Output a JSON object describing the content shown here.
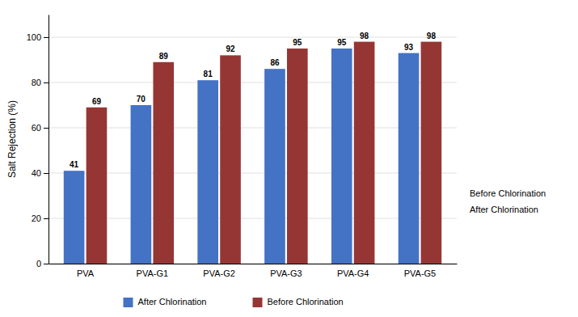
{
  "chart_data": {
    "type": "bar",
    "ylabel": "Salt Rejection (%)",
    "categories": [
      "PVA",
      "PVA-G1",
      "PVA-G2",
      "PVA-G3",
      "PVA-G4",
      "PVA-G5"
    ],
    "series": [
      {
        "name": "After Chlorination",
        "color": "#4472C4",
        "values": [
          41,
          70,
          81,
          86,
          95,
          93
        ]
      },
      {
        "name": "Before Chlorination",
        "color": "#963634",
        "values": [
          69,
          89,
          92,
          95,
          98,
          98
        ]
      }
    ],
    "ylim": [
      0,
      110
    ],
    "yticks": [
      0,
      20,
      40,
      60,
      80,
      100
    ],
    "grid": true,
    "legend": "bottom",
    "data_labels": true,
    "annotations": [
      "Before Chlorination",
      "After Chlorination"
    ]
  }
}
